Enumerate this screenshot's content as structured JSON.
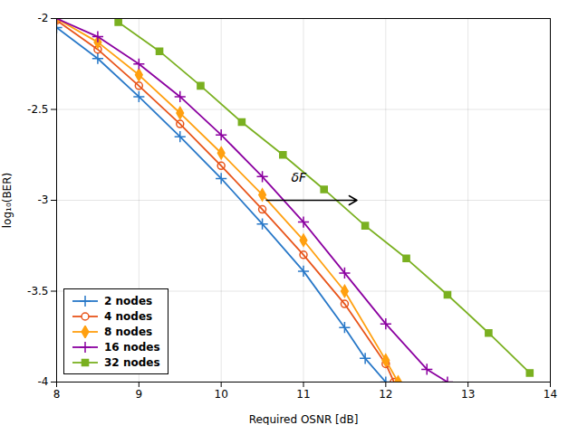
{
  "chart_data": {
    "type": "line",
    "xlabel": "Required OSNR [dB]",
    "ylabel": "log₁₀(BER)",
    "xlim": [
      8,
      14
    ],
    "ylim": [
      -4,
      -2
    ],
    "xticks": [
      8,
      9,
      10,
      11,
      12,
      13,
      14
    ],
    "yticks": [
      -4,
      -3.5,
      -3,
      -2.5,
      -2
    ],
    "grid": true,
    "legend": "lower left",
    "series": [
      {
        "name": "2 nodes",
        "color": "#2878C8",
        "marker": "plus",
        "x": [
          8.0,
          8.5,
          9.0,
          9.5,
          10.0,
          10.5,
          11.0,
          11.5,
          11.75,
          12.0
        ],
        "values": [
          -2.05,
          -2.22,
          -2.43,
          -2.65,
          -2.88,
          -3.13,
          -3.39,
          -3.7,
          -3.87,
          -4.0
        ]
      },
      {
        "name": "4 nodes",
        "color": "#E8541A",
        "marker": "circle",
        "x": [
          8.0,
          8.5,
          9.0,
          9.5,
          10.0,
          10.5,
          11.0,
          11.5,
          12.0,
          12.1
        ],
        "values": [
          -2.01,
          -2.17,
          -2.37,
          -2.58,
          -2.81,
          -3.05,
          -3.3,
          -3.57,
          -3.9,
          -4.0
        ]
      },
      {
        "name": "8 nodes",
        "color": "#FFA010",
        "marker": "diamond",
        "x": [
          8.0,
          8.5,
          9.0,
          9.5,
          10.0,
          10.5,
          11.0,
          11.5,
          12.0,
          12.15
        ],
        "values": [
          -2.0,
          -2.13,
          -2.31,
          -2.52,
          -2.74,
          -2.97,
          -3.22,
          -3.5,
          -3.88,
          -4.0
        ]
      },
      {
        "name": "16 nodes",
        "color": "#8B00A0",
        "marker": "plus",
        "x": [
          8.0,
          8.5,
          9.0,
          9.5,
          10.0,
          10.5,
          11.0,
          11.5,
          12.0,
          12.5,
          12.75
        ],
        "values": [
          -2.0,
          -2.1,
          -2.25,
          -2.43,
          -2.64,
          -2.87,
          -3.12,
          -3.4,
          -3.68,
          -3.93,
          -4.0
        ]
      },
      {
        "name": "32 nodes",
        "color": "#7AB020",
        "marker": "square",
        "x": [
          8.75,
          9.25,
          9.75,
          10.25,
          10.75,
          11.25,
          11.75,
          12.25,
          12.75,
          13.25,
          13.75
        ],
        "values": [
          -2.02,
          -2.18,
          -2.37,
          -2.57,
          -2.75,
          -2.94,
          -3.14,
          -3.32,
          -3.52,
          -3.73,
          -3.95
        ]
      }
    ],
    "annotations": [
      {
        "text": "δF",
        "x": 10.85,
        "y": -2.9,
        "arrow": {
          "x1": 10.55,
          "y1": -3.0,
          "x2": 11.65,
          "y2": -3.0
        }
      }
    ]
  }
}
